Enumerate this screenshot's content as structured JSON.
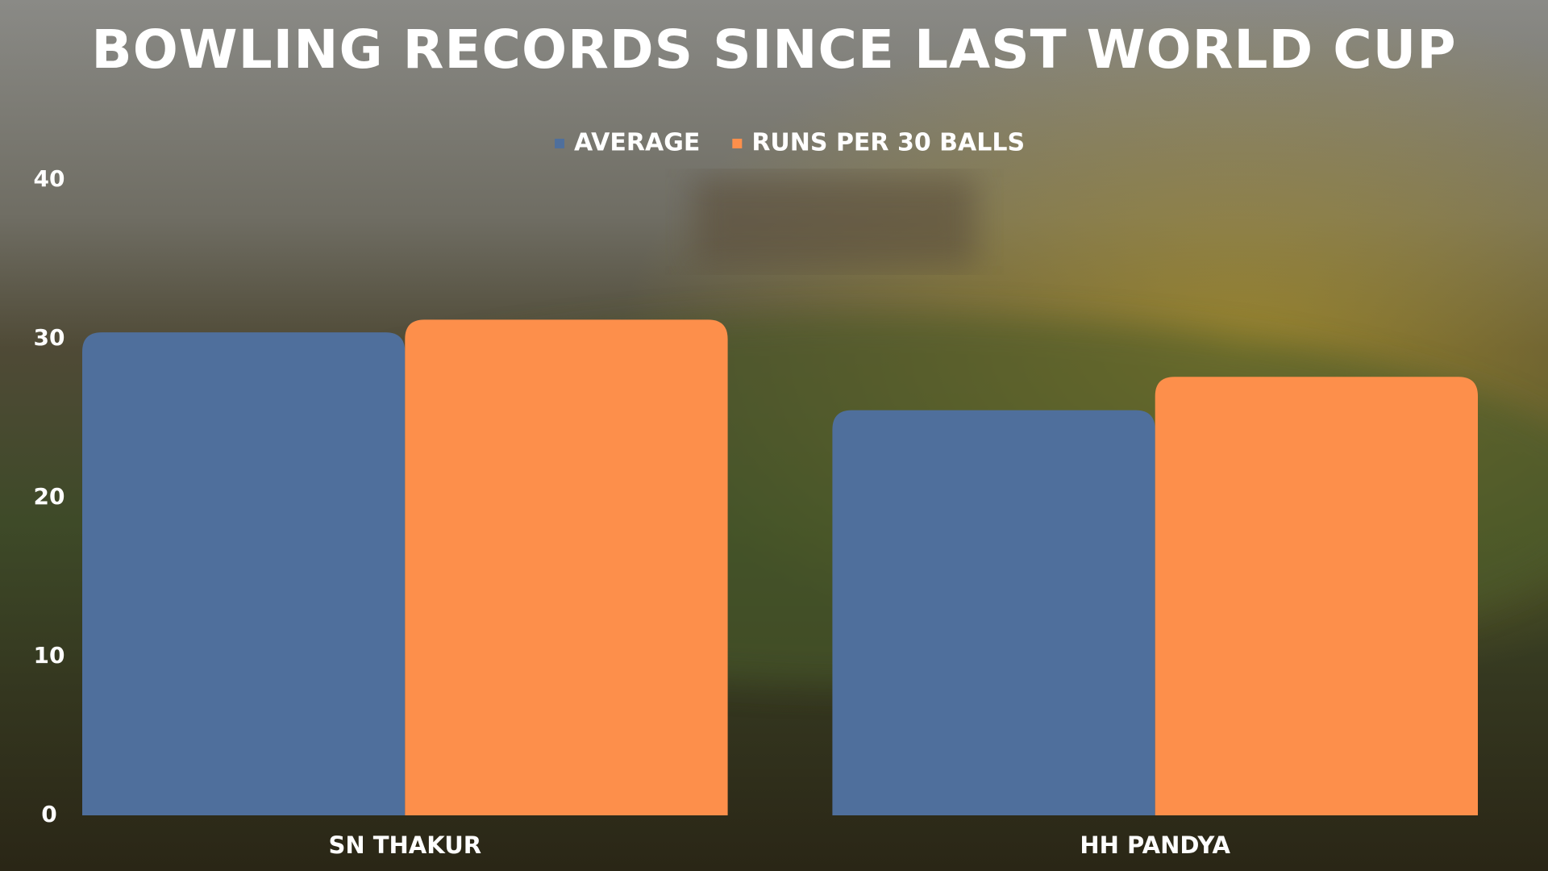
{
  "chart_data": {
    "type": "bar",
    "title": "BOWLING RECORDS SINCE LAST WORLD CUP",
    "categories": [
      "SN THAKUR",
      "HH PANDYA"
    ],
    "series": [
      {
        "name": "AVERAGE",
        "color": "#4f6f9c",
        "values": [
          30.4,
          25.5
        ]
      },
      {
        "name": "RUNS PER 30 BALLS",
        "color": "#fd8f4b",
        "values": [
          31.2,
          27.6
        ]
      }
    ],
    "ylim": [
      0,
      40
    ],
    "yticks": [
      0,
      10,
      20,
      30,
      40
    ],
    "grid": false,
    "legend": "top"
  }
}
